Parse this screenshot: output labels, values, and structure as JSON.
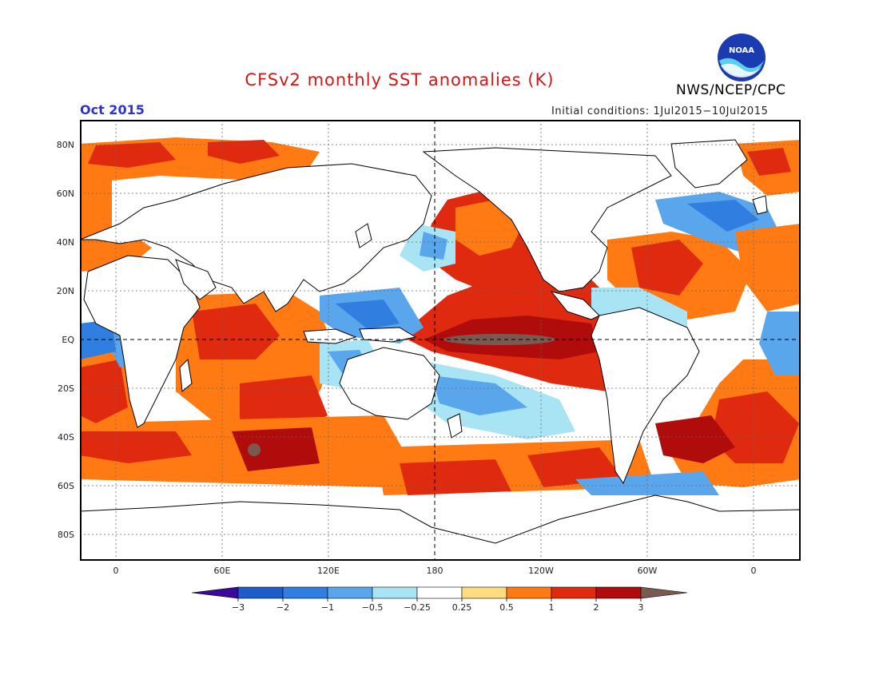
{
  "header": {
    "title": "CFSv2 monthly SST anomalies (K)",
    "agency": "NWS/NCEP/CPC",
    "month": "Oct 2015",
    "initial_conditions": "Initial conditions: 1Jul2015−10Jul2015",
    "logo_text": "NOAA"
  },
  "map": {
    "lat_labels": [
      "80N",
      "60N",
      "40N",
      "20N",
      "EQ",
      "20S",
      "40S",
      "60S",
      "80S"
    ],
    "lon_labels": [
      "0",
      "60E",
      "120E",
      "180",
      "120W",
      "60W",
      "0"
    ]
  },
  "colorbar": {
    "labels": [
      "−3",
      "−2",
      "−1",
      "−0.5",
      "−0.25",
      "0.25",
      "0.5",
      "1",
      "2",
      "3"
    ],
    "colors": [
      "#3b0a9a",
      "#1f5cc9",
      "#2f7ee0",
      "#5aa6ec",
      "#a8e4f4",
      "#ffffff",
      "#ffdc80",
      "#ff7a12",
      "#e02a10",
      "#b00c0c",
      "#7a5a50"
    ]
  },
  "colors": {
    "title": "#d01818",
    "month": "#2a35d0"
  }
}
